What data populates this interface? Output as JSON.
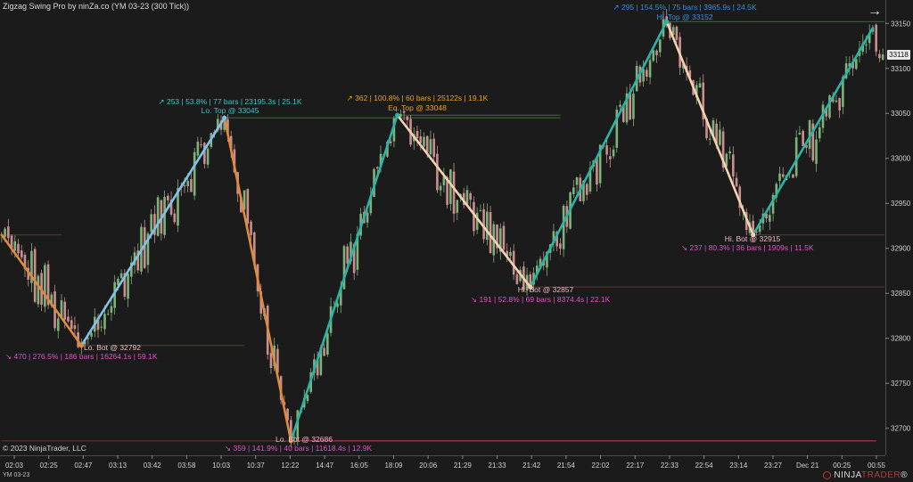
{
  "window": {
    "title": "Zigzag Swing Pro by ninZa.co (YM 03-23 (300 Tick))",
    "copyright": "© 2023 NinjaTrader, LLC",
    "instrument": "YM 03-23",
    "logo_left": "NINJA",
    "logo_right": "TRADER",
    "logo_reg": "®",
    "nav_icon": "arrow-right-icon",
    "nav_glyph": "→"
  },
  "colors": {
    "background": "#1b1b1b",
    "up_candle": "#7db27a",
    "down_candle": "#c98e8e",
    "zig_down_lower": "#e08a3c",
    "zig_up_lower": "#7fc4e8",
    "zig_up_higher": "#2bb3a8",
    "zig_down_higher": "#f2d1b0",
    "label_top_cyan": "#38c5c8",
    "label_top_orange": "#f0a020",
    "label_top_blue": "#2f8fe8",
    "label_bot": "#f0b8c8",
    "label_bot_stats": "#e050c8",
    "level_line_green": "#3f6b3f",
    "level_line_red": "#6b3434",
    "level_line_bottom": "#c83c5a"
  },
  "chart_data": {
    "type": "candlestick",
    "y_axis": {
      "ticks": [
        32700,
        32750,
        32800,
        32850,
        32900,
        32950,
        33000,
        33050,
        33100,
        33150
      ],
      "ylim": [
        32670,
        33176
      ],
      "last_price": 33118
    },
    "x_axis": {
      "ticks": [
        "02:03",
        "02:25",
        "02:47",
        "03:13",
        "03:42",
        "03:58",
        "10:03",
        "10:37",
        "12:22",
        "14:47",
        "16:05",
        "18:09",
        "20:06",
        "21:29",
        "21:33",
        "21:42",
        "21:54",
        "22:02",
        "22:17",
        "22:33",
        "22:54",
        "23:14",
        "23:27",
        "Dec 21",
        "00:25",
        "00:55"
      ]
    },
    "swings": [
      {
        "bar": 0,
        "price": 32915
      },
      {
        "bar": 24,
        "price": 32792
      },
      {
        "bar": 67,
        "price": 33045
      },
      {
        "bar": 87,
        "price": 32686
      },
      {
        "bar": 119,
        "price": 33048
      },
      {
        "bar": 159,
        "price": 32857
      },
      {
        "bar": 200,
        "price": 33152
      },
      {
        "bar": 226,
        "price": 32915
      },
      {
        "bar": 262,
        "price": 33145
      }
    ],
    "labels": [
      {
        "kind": "bot",
        "line1": "Lo. Bot @ 32792",
        "line2": "↘ 470  |  276.5%  |  186 bars  |  16264.1s  |  59.1K"
      },
      {
        "kind": "top_cyan",
        "line1": "↗ 253  |  53.8%  |  77 bars  |  23195.3s  |  25.1K",
        "line2": "Lo. Top @ 33045"
      },
      {
        "kind": "bot",
        "line1": "Lo. Bot @ 32686",
        "line2": "↘ 359  |  141.9%  |  40 bars  |  11618.4s  |  12.9K"
      },
      {
        "kind": "top_orange",
        "line1": "↗ 362  |  100.8%  |  60 bars  |  25122s  |  19.1K",
        "line2": "Eq. Top @ 33048"
      },
      {
        "kind": "bot",
        "line1": "Hi. Bot @ 32857",
        "line2": "↘ 191  |  52.8%  |  69 bars  |  8374.4s  |  22.1K"
      },
      {
        "kind": "top_blue",
        "line1": "↗ 295  |  154.5%  |  75 bars  |  3965.9s  |  24.5K",
        "line2": "Hi. Top @ 33152"
      },
      {
        "kind": "bot",
        "line1": "Hi. Bot @ 32915",
        "line2": "↘ 237  |  80.3%  |  36 bars  |  1909s  |  11.5K"
      }
    ]
  }
}
